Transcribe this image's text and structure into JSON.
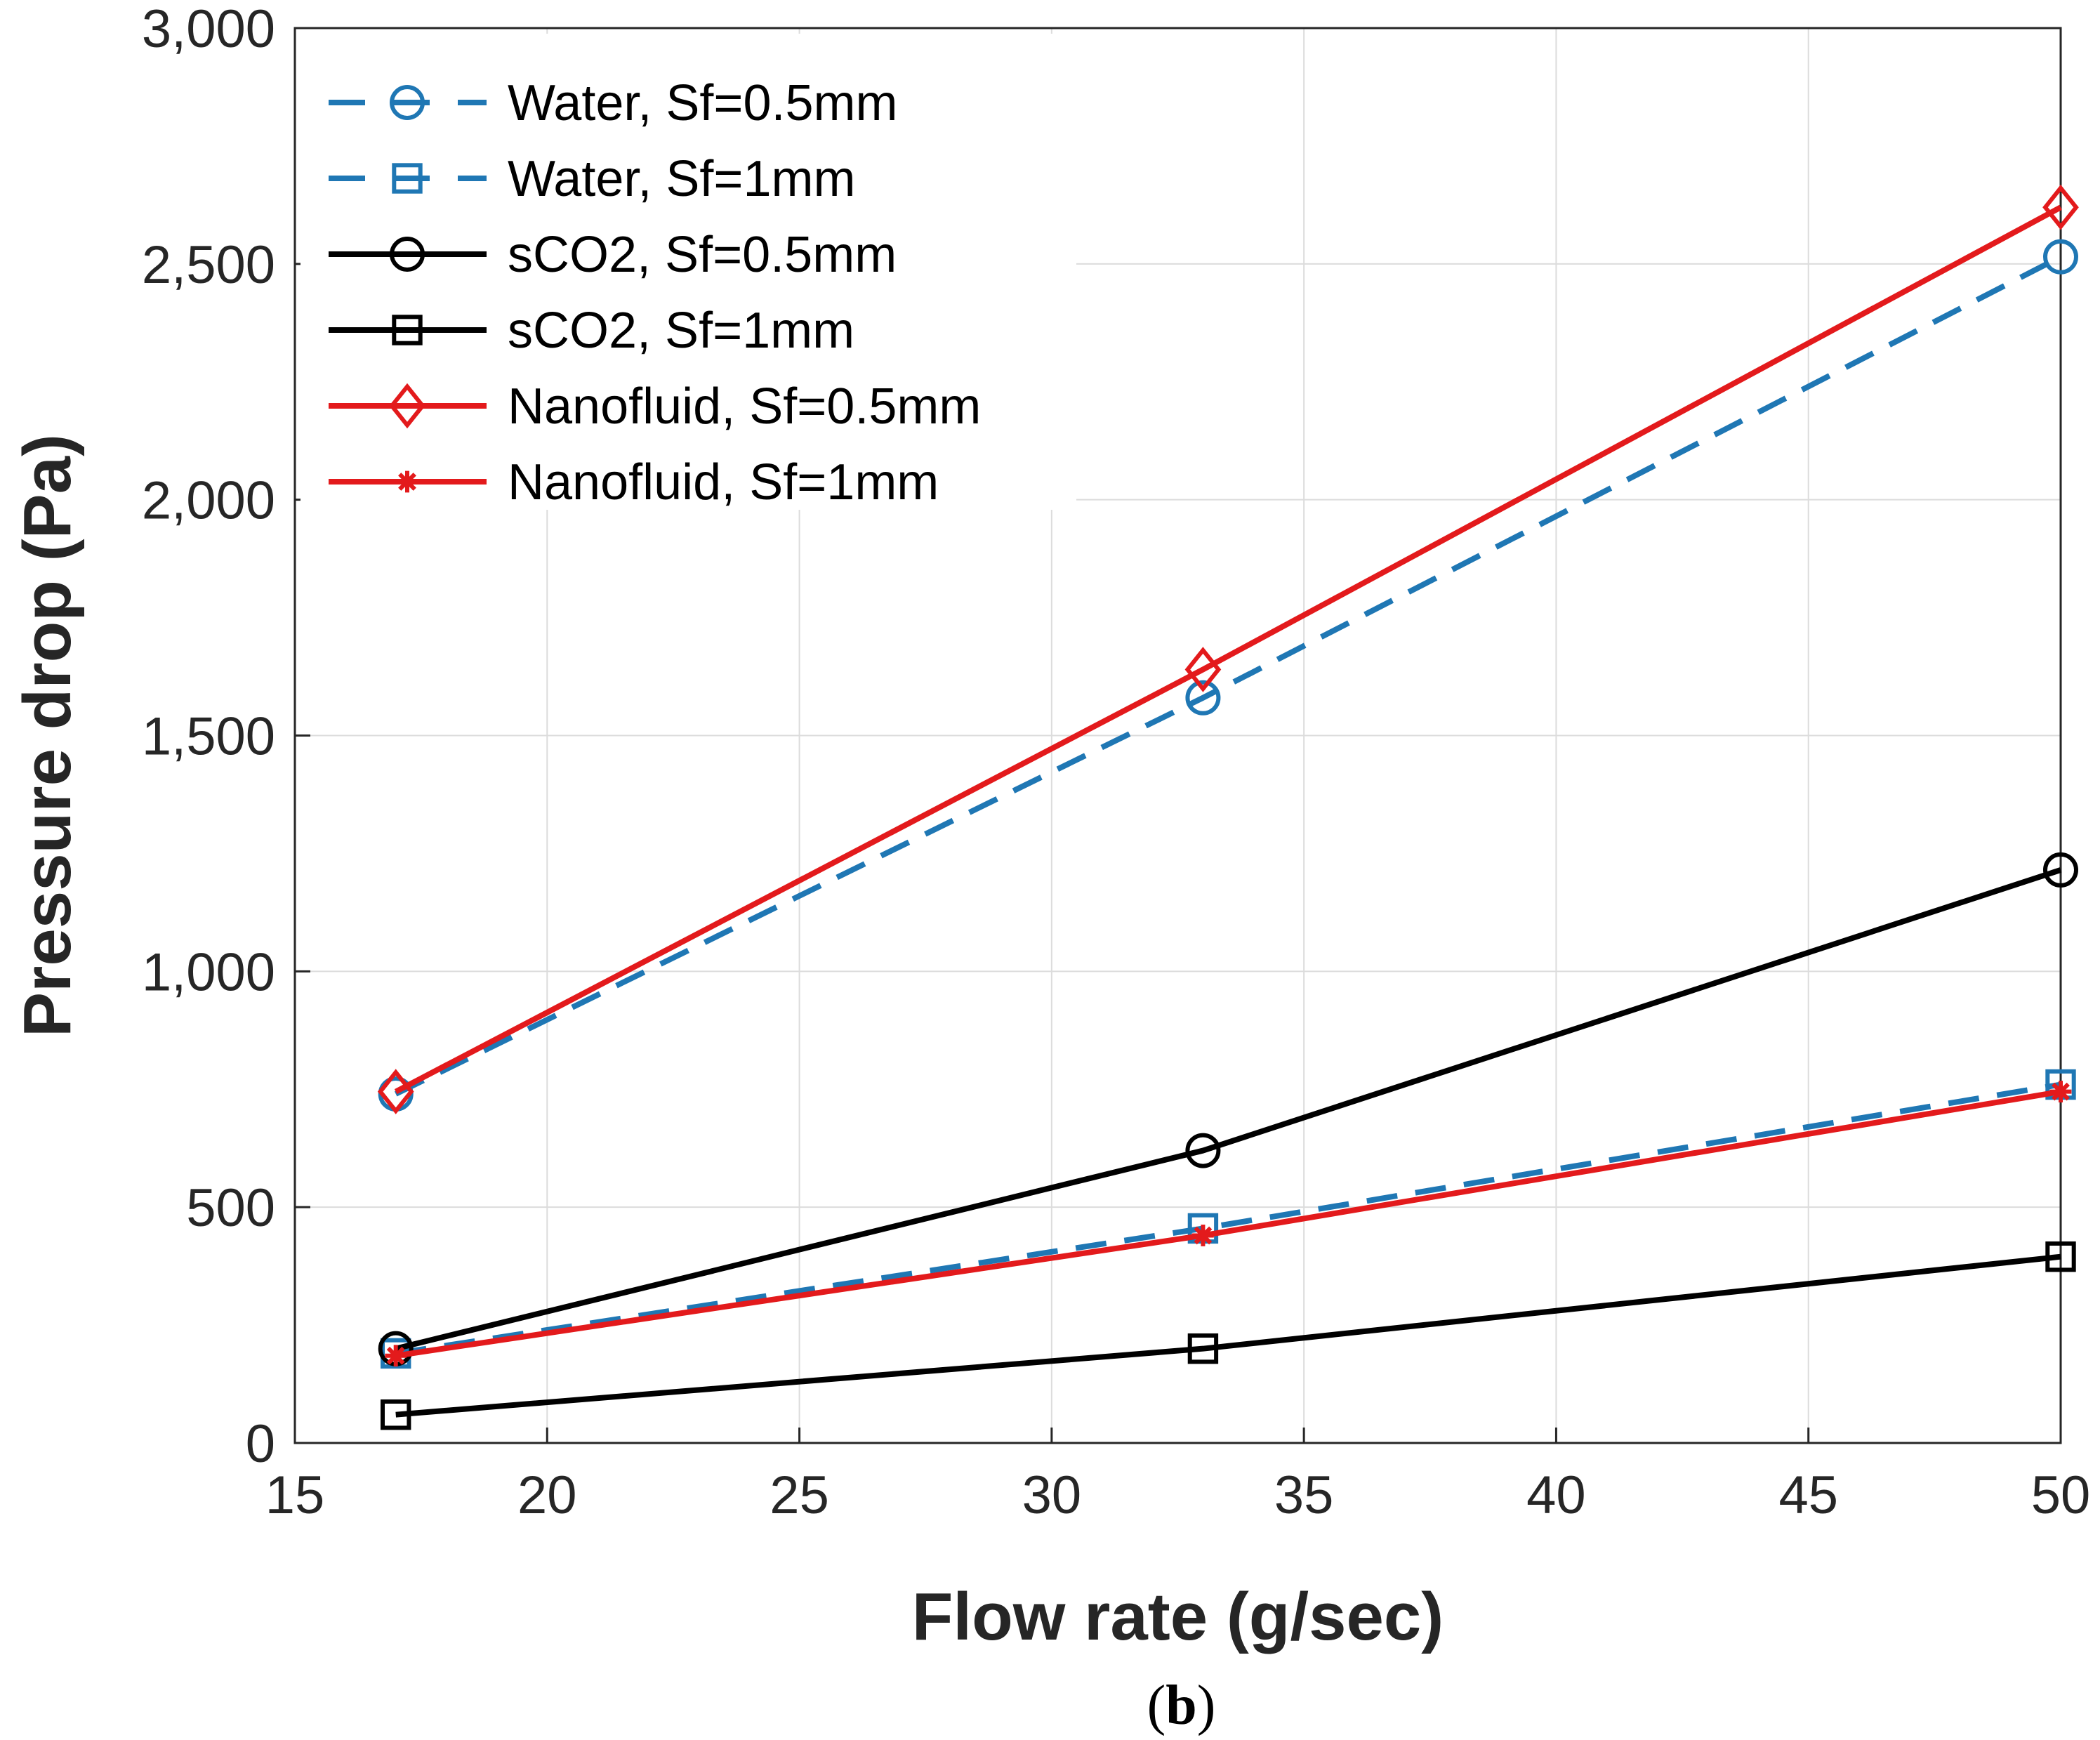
{
  "chart_data": {
    "type": "line",
    "title": "",
    "xlabel": "Flow rate (g/sec)",
    "ylabel": "Pressure drop (Pa)",
    "xlim": [
      15,
      50
    ],
    "ylim": [
      0,
      3000
    ],
    "xticks": [
      15,
      20,
      25,
      30,
      35,
      40,
      45,
      50
    ],
    "xtick_labels": [
      "15",
      "20",
      "25",
      "30",
      "35",
      "40",
      "45",
      "50"
    ],
    "yticks": [
      0,
      500,
      1000,
      1500,
      2000,
      2500,
      3000
    ],
    "ytick_labels": [
      "0",
      "500",
      "1,000",
      "1,500",
      "2,000",
      "2,500",
      "3,000"
    ],
    "grid": true,
    "legend_position": "top-left",
    "x": [
      17,
      33,
      50
    ],
    "series": [
      {
        "name": "Water, Sf=0.5mm",
        "values": [
          740,
          1580,
          2515
        ],
        "color": "#1f77b4",
        "dash": "dashed",
        "marker": "circle"
      },
      {
        "name": "Water, Sf=1mm",
        "values": [
          190,
          455,
          760
        ],
        "color": "#1f77b4",
        "dash": "dashed",
        "marker": "square"
      },
      {
        "name": "sCO2, Sf=0.5mm",
        "values": [
          200,
          620,
          1215
        ],
        "color": "#000000",
        "dash": "solid",
        "marker": "circle"
      },
      {
        "name": "sCO2, Sf=1mm",
        "values": [
          60,
          200,
          395
        ],
        "color": "#000000",
        "dash": "solid",
        "marker": "square"
      },
      {
        "name": "Nanofluid, Sf=0.5mm",
        "values": [
          745,
          1640,
          2620
        ],
        "color": "#e31a1c",
        "dash": "solid",
        "marker": "diamond"
      },
      {
        "name": "Nanofluid, Sf=1mm",
        "values": [
          185,
          440,
          745
        ],
        "color": "#e31a1c",
        "dash": "solid",
        "marker": "star"
      }
    ],
    "caption": {
      "open": "(",
      "letter": "b",
      "close": ")"
    }
  }
}
